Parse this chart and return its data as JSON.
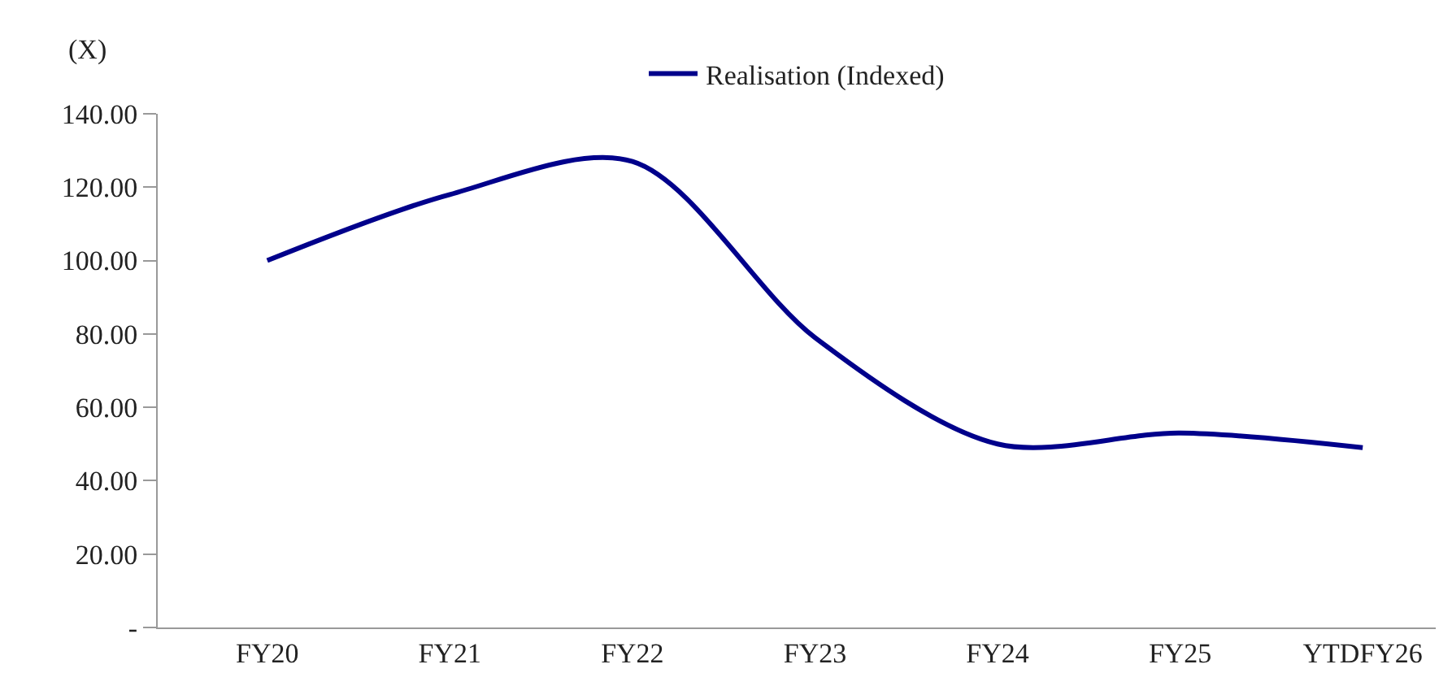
{
  "chart_data": {
    "type": "line",
    "ylabel": "(X)",
    "categories": [
      "FY20",
      "FY21",
      "FY22",
      "FY23",
      "FY24",
      "FY25",
      "YTDFY26"
    ],
    "series": [
      {
        "name": "Realisation (Indexed)",
        "color": "#00008b",
        "values": [
          100,
          118,
          127,
          79,
          50,
          53,
          49
        ]
      }
    ],
    "ylim": [
      0,
      140
    ],
    "yticks": [
      {
        "value": 0,
        "label": "-"
      },
      {
        "value": 20,
        "label": "20.00"
      },
      {
        "value": 40,
        "label": "40.00"
      },
      {
        "value": 60,
        "label": "60.00"
      },
      {
        "value": 80,
        "label": "80.00"
      },
      {
        "value": 100,
        "label": "100.00"
      },
      {
        "value": 120,
        "label": "120.00"
      },
      {
        "value": 140,
        "label": "140.00"
      }
    ],
    "grid": false,
    "legend": "top",
    "marker": "none",
    "line_style": "solid"
  }
}
